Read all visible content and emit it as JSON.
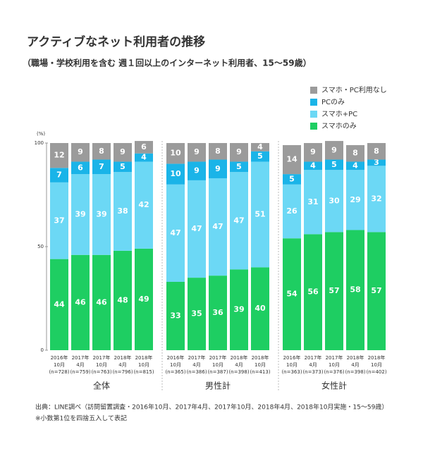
{
  "chart_data": {
    "type": "stacked_bar",
    "title": "アクティブなネット利用者の推移",
    "subtitle": "（職場・学校利用を含む 週１回以上のインターネット利用者、15〜59歳）",
    "y_axis_label": "(%)",
    "groups": [
      "全体",
      "男性計",
      "女性計"
    ],
    "categories": [
      [
        "2016年",
        "10月",
        "(n=728)"
      ],
      [
        "2017年",
        "4月",
        "(n=759)"
      ],
      [
        "2017年",
        "10月",
        "(n=763)"
      ],
      [
        "2018年",
        "4月",
        "(n=796)"
      ],
      [
        "2018年",
        "10月",
        "(n=815)"
      ],
      [
        "2016年",
        "10月",
        "(n=365)"
      ],
      [
        "2017年",
        "4月",
        "(n=386)"
      ],
      [
        "2017年",
        "10月",
        "(n=387)"
      ],
      [
        "2018年",
        "4月",
        "(n=398)"
      ],
      [
        "2018年",
        "10月",
        "(n=413)"
      ],
      [
        "2016年",
        "10月",
        "(n=363)"
      ],
      [
        "2017年",
        "4月",
        "(n=373)"
      ],
      [
        "2017年",
        "10月",
        "(n=376)"
      ],
      [
        "2018年",
        "4月",
        "(n=398)"
      ],
      [
        "2018年",
        "10月",
        "(n=402)"
      ]
    ],
    "series": [
      {
        "name": "スマホ・PC利用なし",
        "color": "#9b9b9b",
        "values": [
          12,
          9,
          8,
          9,
          6,
          10,
          9,
          8,
          9,
          4,
          14,
          9,
          9,
          8,
          8
        ]
      },
      {
        "name": "PCのみ",
        "color": "#1ab4e8",
        "values": [
          7,
          6,
          7,
          5,
          4,
          10,
          9,
          9,
          5,
          5,
          5,
          4,
          5,
          4,
          3
        ]
      },
      {
        "name": "スマホ+PC",
        "color": "#6cd8f5",
        "values": [
          37,
          39,
          39,
          38,
          42,
          47,
          47,
          47,
          47,
          51,
          26,
          31,
          30,
          29,
          32
        ]
      },
      {
        "name": "スマホのみ",
        "color": "#1ece62",
        "values": [
          44,
          46,
          46,
          48,
          49,
          33,
          35,
          36,
          39,
          40,
          54,
          56,
          57,
          58,
          57
        ]
      }
    ],
    "ylim": [
      0,
      100
    ],
    "yticks": [
      0,
      50,
      100
    ],
    "notes": [
      "出典：LINE調べ（訪問留置調査・2016年10月、2017年4月、2017年10月、2018年4月、2018年10月実施・15〜59歳）",
      "※小数第1位を四捨五入して表記"
    ]
  }
}
